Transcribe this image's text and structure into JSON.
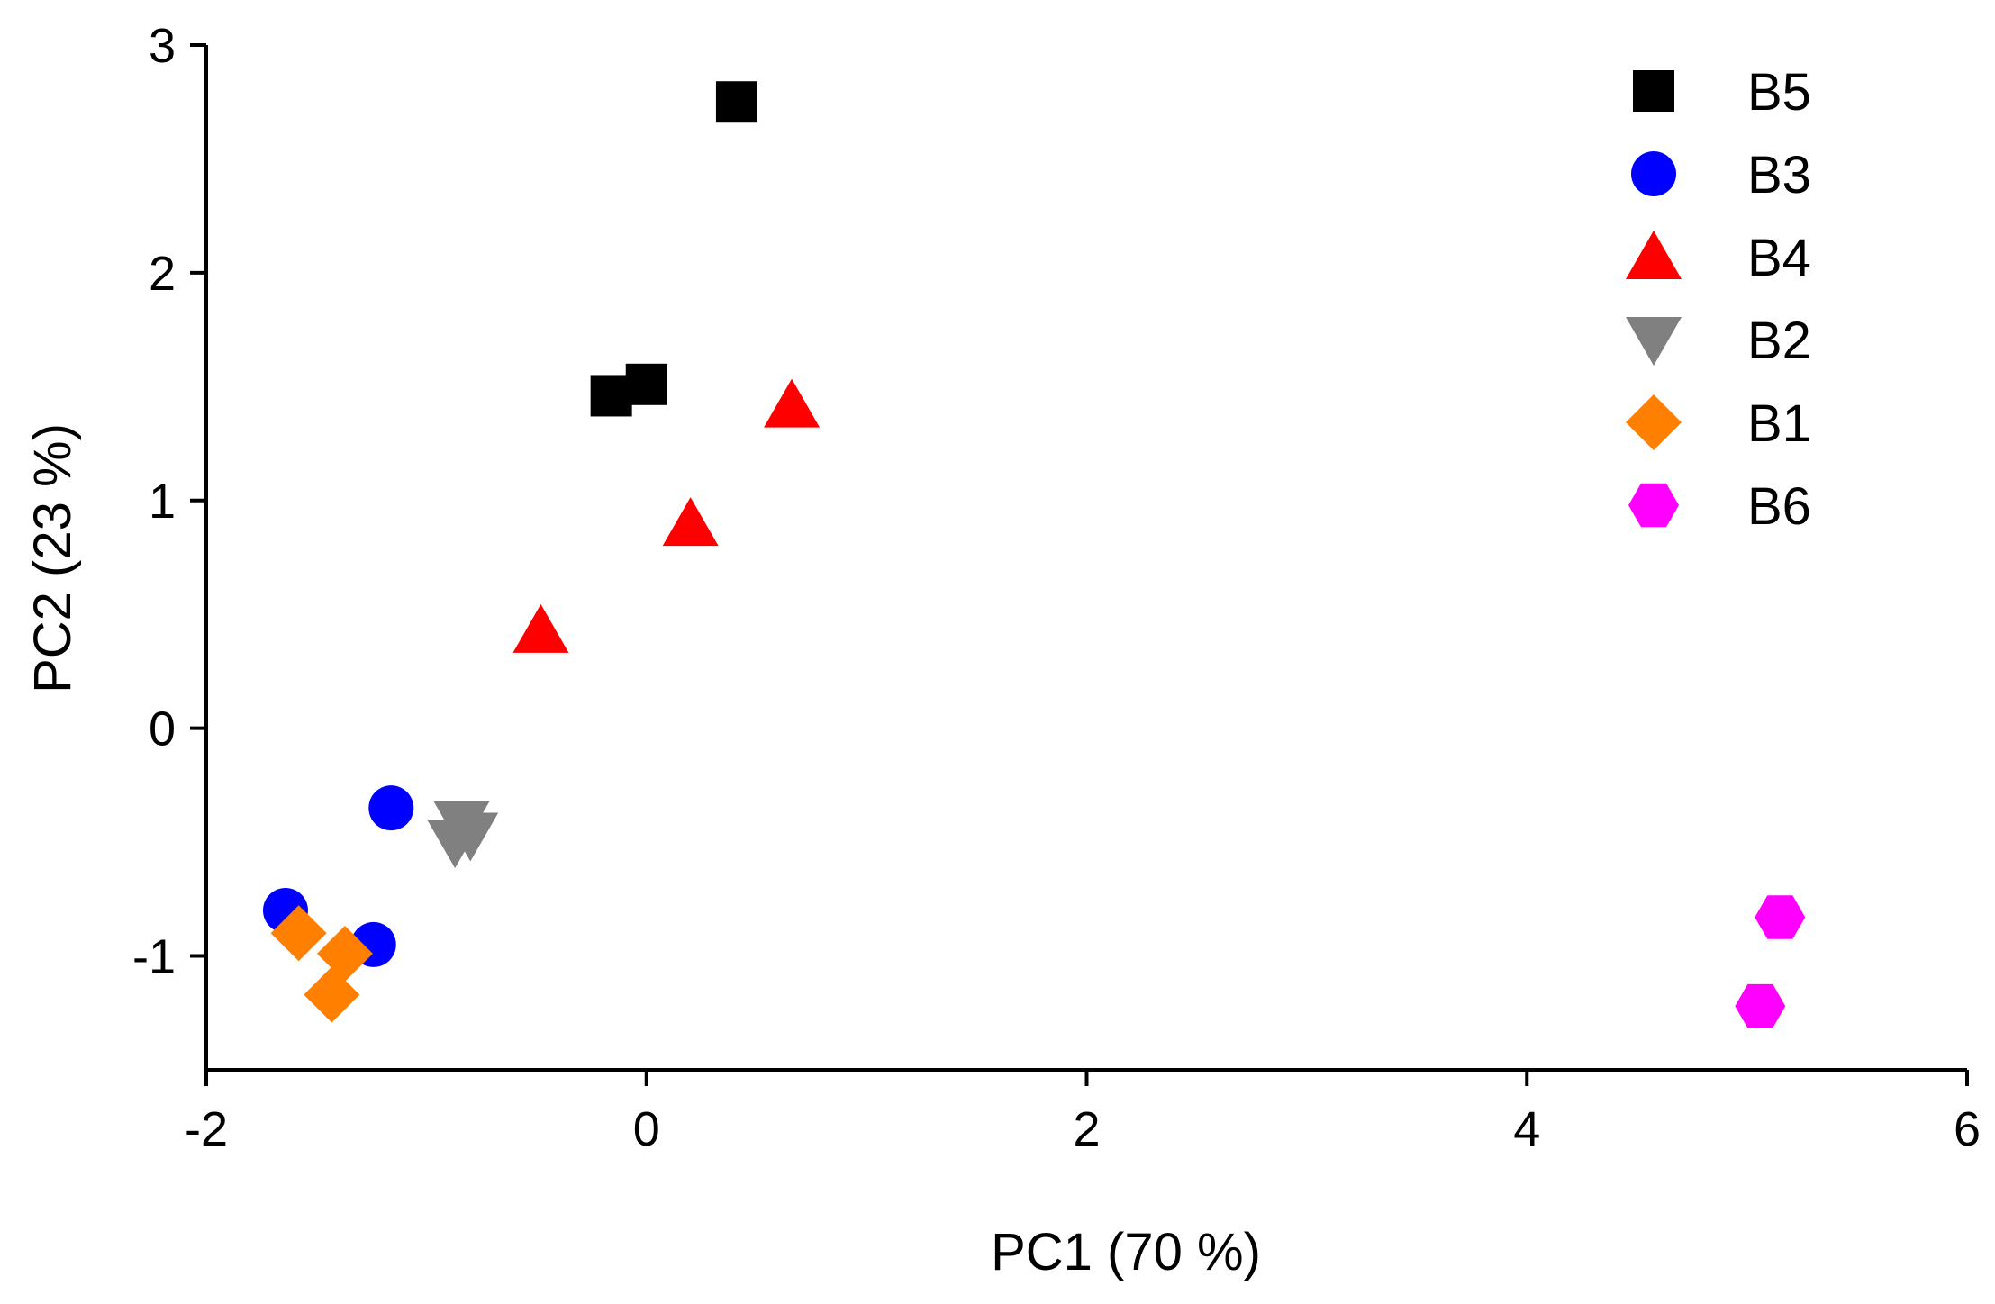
{
  "chart_data": {
    "type": "scatter",
    "title": "",
    "xlabel": "PC1 (70 %)",
    "ylabel": "PC2 (23 %)",
    "xlim": [
      -2,
      6
    ],
    "ylim": [
      -1.5,
      3
    ],
    "xticks": [
      -2,
      0,
      2,
      4,
      6
    ],
    "xtick_labels": [
      "-2",
      "0",
      "2",
      "4",
      "6"
    ],
    "yticks": [
      -1,
      0,
      1,
      2,
      3
    ],
    "ytick_labels": [
      "-1",
      "0",
      "1",
      "2",
      "3"
    ],
    "grid": false,
    "legend_position": "top-right",
    "series": [
      {
        "name": "B5",
        "marker": "square",
        "color": "#000000",
        "points": [
          {
            "x": 0.41,
            "y": 2.75
          },
          {
            "x": -0.16,
            "y": 1.46
          },
          {
            "x": 0.0,
            "y": 1.51
          }
        ]
      },
      {
        "name": "B3",
        "marker": "circle",
        "color": "#0000ff",
        "points": [
          {
            "x": -1.16,
            "y": -0.35
          },
          {
            "x": -1.64,
            "y": -0.8
          },
          {
            "x": -1.24,
            "y": -0.95
          }
        ]
      },
      {
        "name": "B4",
        "marker": "triangle-up",
        "color": "#ff0000",
        "points": [
          {
            "x": 0.66,
            "y": 1.42
          },
          {
            "x": 0.2,
            "y": 0.9
          },
          {
            "x": -0.48,
            "y": 0.43
          }
        ]
      },
      {
        "name": "B2",
        "marker": "triangle-down",
        "color": "#808080",
        "points": [
          {
            "x": -0.84,
            "y": -0.42
          },
          {
            "x": -0.87,
            "y": -0.5
          },
          {
            "x": -0.8,
            "y": -0.47
          }
        ]
      },
      {
        "name": "B1",
        "marker": "diamond",
        "color": "#ff8000",
        "points": [
          {
            "x": -1.58,
            "y": -0.9
          },
          {
            "x": -1.37,
            "y": -0.99
          },
          {
            "x": -1.43,
            "y": -1.17
          }
        ]
      },
      {
        "name": "B6",
        "marker": "hexagon",
        "color": "#ff00ff",
        "points": [
          {
            "x": 5.15,
            "y": -0.83
          },
          {
            "x": 5.06,
            "y": -1.22
          }
        ]
      }
    ]
  }
}
